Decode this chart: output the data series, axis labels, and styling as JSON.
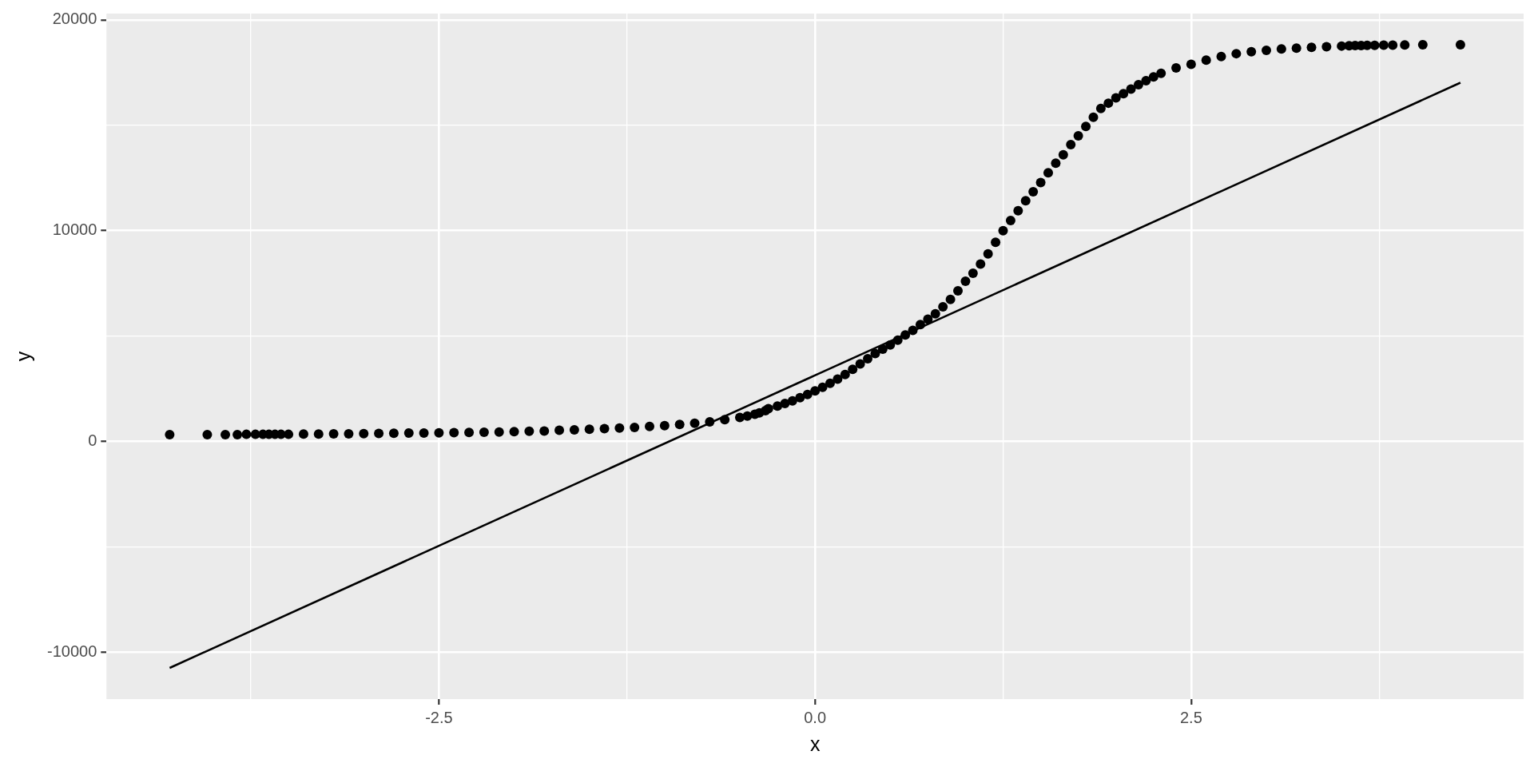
{
  "chart_data": {
    "type": "scatter",
    "xlabel": "x",
    "ylabel": "y",
    "xlim": [
      -4.71,
      4.71
    ],
    "ylim": [
      -12220,
      20300
    ],
    "xticks": [
      {
        "value": -3.75,
        "label": null
      },
      -2.5,
      {
        "value": -1.25,
        "label": null
      },
      {
        "value": 0,
        "label": "0.0"
      },
      {
        "value": 1.25,
        "label": null
      },
      2.5,
      {
        "value": 3.75,
        "label": null
      }
    ],
    "yticks": [
      -10000,
      {
        "value": -5000,
        "label": null
      },
      0,
      {
        "value": 5000,
        "label": null
      },
      10000,
      {
        "value": 15000,
        "label": null
      },
      20000
    ],
    "grid": true,
    "marker": "circle",
    "series": [
      {
        "type": "scatter",
        "color": "#000000",
        "x": [
          -4.29,
          -4.04,
          -3.92,
          -3.84,
          -3.78,
          -3.72,
          -3.67,
          -3.63,
          -3.59,
          -3.55,
          -3.5,
          -3.4,
          -3.3,
          -3.2,
          -3.1,
          -3.0,
          -2.9,
          -2.8,
          -2.7,
          -2.6,
          -2.5,
          -2.4,
          -2.3,
          -2.2,
          -2.1,
          -2.0,
          -1.9,
          -1.8,
          -1.7,
          -1.6,
          -1.5,
          -1.4,
          -1.3,
          -1.2,
          -1.1,
          -1.0,
          -0.9,
          -0.8,
          -0.7,
          -0.6,
          -0.5,
          -0.45,
          -0.4,
          -0.37,
          -0.33,
          -0.31,
          -0.25,
          -0.2,
          -0.15,
          -0.1,
          -0.05,
          0.0,
          0.05,
          0.1,
          0.15,
          0.2,
          0.25,
          0.3,
          0.35,
          0.4,
          0.45,
          0.5,
          0.55,
          0.6,
          0.65,
          0.7,
          0.75,
          0.8,
          0.85,
          0.9,
          0.95,
          1.0,
          1.05,
          1.1,
          1.15,
          1.2,
          1.25,
          1.3,
          1.35,
          1.4,
          1.45,
          1.5,
          1.55,
          1.6,
          1.65,
          1.7,
          1.75,
          1.8,
          1.85,
          1.9,
          1.95,
          2.0,
          2.05,
          2.1,
          2.15,
          2.2,
          2.25,
          2.3,
          2.4,
          2.5,
          2.6,
          2.7,
          2.8,
          2.9,
          3.0,
          3.1,
          3.2,
          3.3,
          3.4,
          3.5,
          3.55,
          3.59,
          3.63,
          3.67,
          3.72,
          3.78,
          3.84,
          3.92,
          4.04,
          4.29
        ],
        "values": [
          330,
          330,
          330,
          330,
          340,
          340,
          340,
          340,
          340,
          340,
          340,
          350,
          350,
          360,
          360,
          370,
          380,
          390,
          400,
          400,
          410,
          420,
          430,
          440,
          450,
          470,
          490,
          500,
          530,
          550,
          580,
          610,
          640,
          670,
          710,
          750,
          810,
          870,
          930,
          1040,
          1140,
          1210,
          1290,
          1360,
          1460,
          1560,
          1680,
          1800,
          1930,
          2080,
          2230,
          2400,
          2570,
          2760,
          2960,
          3180,
          3420,
          3680,
          3930,
          4170,
          4380,
          4580,
          4810,
          5050,
          5270,
          5550,
          5800,
          6060,
          6390,
          6740,
          7150,
          7600,
          7980,
          8420,
          8900,
          9450,
          10000,
          10480,
          10950,
          11420,
          11850,
          12280,
          12750,
          13200,
          13600,
          14080,
          14500,
          14950,
          15380,
          15800,
          16050,
          16300,
          16500,
          16720,
          16930,
          17120,
          17300,
          17470,
          17720,
          17890,
          18090,
          18260,
          18400,
          18490,
          18560,
          18620,
          18660,
          18700,
          18730,
          18760,
          18770,
          18780,
          18780,
          18790,
          18790,
          18800,
          18800,
          18810,
          18820,
          18820
        ]
      },
      {
        "type": "line",
        "color": "#000000",
        "marker": "none",
        "x": [
          -4.29,
          4.29
        ],
        "values": [
          -10740,
          17020
        ]
      }
    ]
  }
}
